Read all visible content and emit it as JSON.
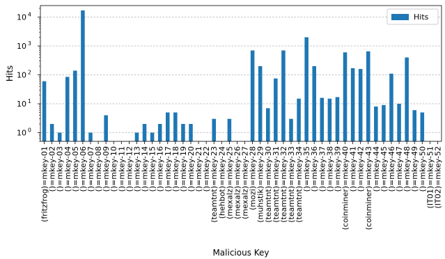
{
  "chart_data": {
    "type": "bar",
    "scale_y": "log",
    "xlabel": "Malicious Key",
    "ylabel": "Hits",
    "ylim": [
      0.5,
      25000
    ],
    "y_ticks": [
      {
        "value": 1,
        "base": "10",
        "exp": "0"
      },
      {
        "value": 10,
        "base": "10",
        "exp": "1"
      },
      {
        "value": 100,
        "base": "10",
        "exp": "2"
      },
      {
        "value": 1000,
        "base": "10",
        "exp": "3"
      },
      {
        "value": 10000,
        "base": "10",
        "exp": "4"
      }
    ],
    "grid": true,
    "legend_position": "top-right",
    "color": "#1f77b4",
    "categories": [
      "(fritzfrog)=mkey-01",
      "()=mkey-02",
      "()=mkey-03",
      "()=mkey-04",
      "()=mkey-05",
      "()=mkey-06",
      "()=mkey-07",
      "()=mkey-08",
      "()=mkey-09",
      "()=mkey-10",
      "()=mkey-11",
      "()=mkey-12",
      "()=mkey-13",
      "()=mkey-14",
      "()=mkey-15",
      "()=mkey-16",
      "()=mkey-17",
      "()=mkey-18",
      "()=mkey-19",
      "()=mkey-20",
      "()=mkey-21",
      "()=mkey-22",
      "(teamtnt)=mkey-23",
      "(hehbot)=mkey-24",
      "(mexalz)=mkey-25",
      "(mexalz)=mkey-26",
      "(mexalz)=mkey-27",
      "(mozi)=mkey-28",
      "(muhstik)=mkey-29",
      "(teamtnt)=mkey-30",
      "(teamtnt)=mkey-31",
      "(teamtnt)=mkey-32",
      "(teamtnt)=mkey-33",
      "(teamtnt)=mkey-34",
      "()=mkey-35",
      "()=mkey-36",
      "()=mkey-37",
      "()=mkey-38",
      "()=mkey-39",
      "(coinminer)=mkey-40",
      "()=mkey-41",
      "()=mkey-42",
      "(coinminer)=mkey-43",
      "()=mkey-44",
      "()=mkey-45",
      "()=mkey-46",
      "()=mkey-47",
      "()=mkey-48",
      "()=mkey-49",
      "()=mkey-50",
      "(IT01)=mkey-51",
      "(IT02)=mkey-52"
    ],
    "series": [
      {
        "name": "Hits",
        "values": [
          60,
          2,
          1,
          85,
          140,
          17000,
          1,
          0,
          4,
          0,
          0,
          0,
          1,
          2,
          1,
          2,
          5,
          5,
          2,
          2,
          0,
          0,
          3,
          0,
          3,
          0,
          0,
          700,
          200,
          7,
          75,
          700,
          3,
          15,
          2000,
          200,
          16,
          15,
          17,
          600,
          170,
          160,
          650,
          8,
          9,
          110,
          10,
          400,
          6,
          5,
          0,
          0
        ]
      }
    ]
  }
}
